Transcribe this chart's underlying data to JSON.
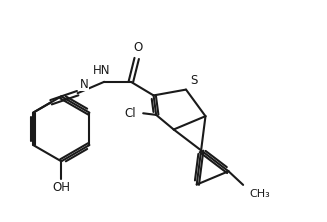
{
  "bg_color": "#ffffff",
  "line_color": "#1a1a1a",
  "line_width": 1.5,
  "font_size": 8.5,
  "figsize": [
    3.27,
    2.22
  ],
  "dpi": 100,
  "xlim": [
    0,
    10
  ],
  "ylim": [
    0,
    6.8
  ]
}
